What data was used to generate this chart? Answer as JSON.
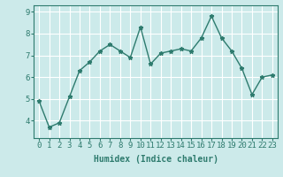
{
  "x": [
    0,
    1,
    2,
    3,
    4,
    5,
    6,
    7,
    8,
    9,
    10,
    11,
    12,
    13,
    14,
    15,
    16,
    17,
    18,
    19,
    20,
    21,
    22,
    23
  ],
  "y": [
    4.9,
    3.7,
    3.9,
    5.1,
    6.3,
    6.7,
    7.2,
    7.5,
    7.2,
    6.9,
    8.3,
    6.6,
    7.1,
    7.2,
    7.3,
    7.2,
    7.8,
    8.8,
    7.8,
    7.2,
    6.4,
    5.2,
    6.0,
    6.1
  ],
  "line_color": "#2e7b6e",
  "marker": "*",
  "marker_size": 3.5,
  "bg_color": "#cceaea",
  "grid_color": "#ffffff",
  "xlabel": "Humidex (Indice chaleur)",
  "xlim": [
    -0.5,
    23.5
  ],
  "ylim": [
    3.2,
    9.3
  ],
  "yticks": [
    4,
    5,
    6,
    7,
    8,
    9
  ],
  "xticks": [
    0,
    1,
    2,
    3,
    4,
    5,
    6,
    7,
    8,
    9,
    10,
    11,
    12,
    13,
    14,
    15,
    16,
    17,
    18,
    19,
    20,
    21,
    22,
    23
  ],
  "text_color": "#2e7b6e",
  "xlabel_fontsize": 7,
  "tick_fontsize": 6.5,
  "line_width": 1.0
}
